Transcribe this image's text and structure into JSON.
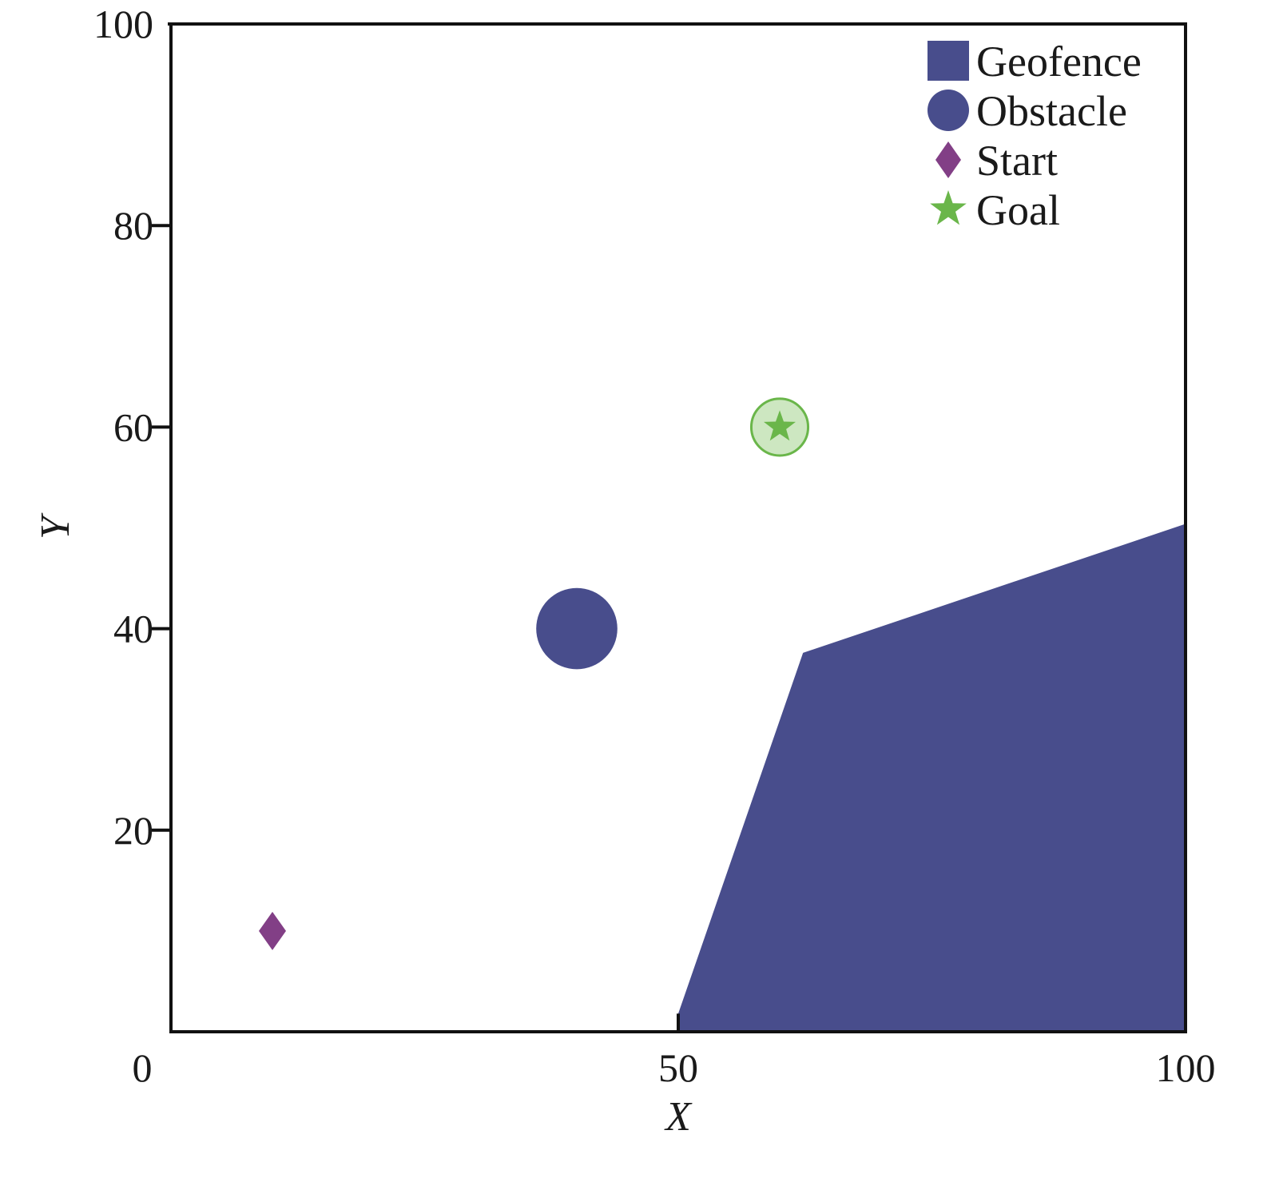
{
  "chart_data": {
    "type": "scatter",
    "xlabel": "X",
    "ylabel": "Y",
    "xlim": [
      0,
      100
    ],
    "ylim": [
      0,
      100
    ],
    "xticks": [
      0,
      50,
      100
    ],
    "yticks": [
      20,
      40,
      60,
      80,
      100
    ],
    "grid": false,
    "legend_position": "top-right",
    "geofence": {
      "name": "Geofence",
      "color": "#484D8C",
      "polygon": [
        [
          50,
          0
        ],
        [
          50,
          1.8
        ],
        [
          62.3,
          37.6
        ],
        [
          100,
          50.4
        ],
        [
          100,
          0
        ]
      ]
    },
    "obstacle": {
      "name": "Obstacle",
      "color": "#484D8C",
      "center": [
        40,
        40
      ],
      "radius": 4
    },
    "start": {
      "name": "Start",
      "color": "#823F86",
      "point": [
        10,
        10
      ]
    },
    "goal": {
      "name": "Goal",
      "color": "#6AB64A",
      "point": [
        60,
        60
      ],
      "radius": 2.8
    },
    "legend": [
      "Geofence",
      "Obstacle",
      "Start",
      "Goal"
    ]
  }
}
